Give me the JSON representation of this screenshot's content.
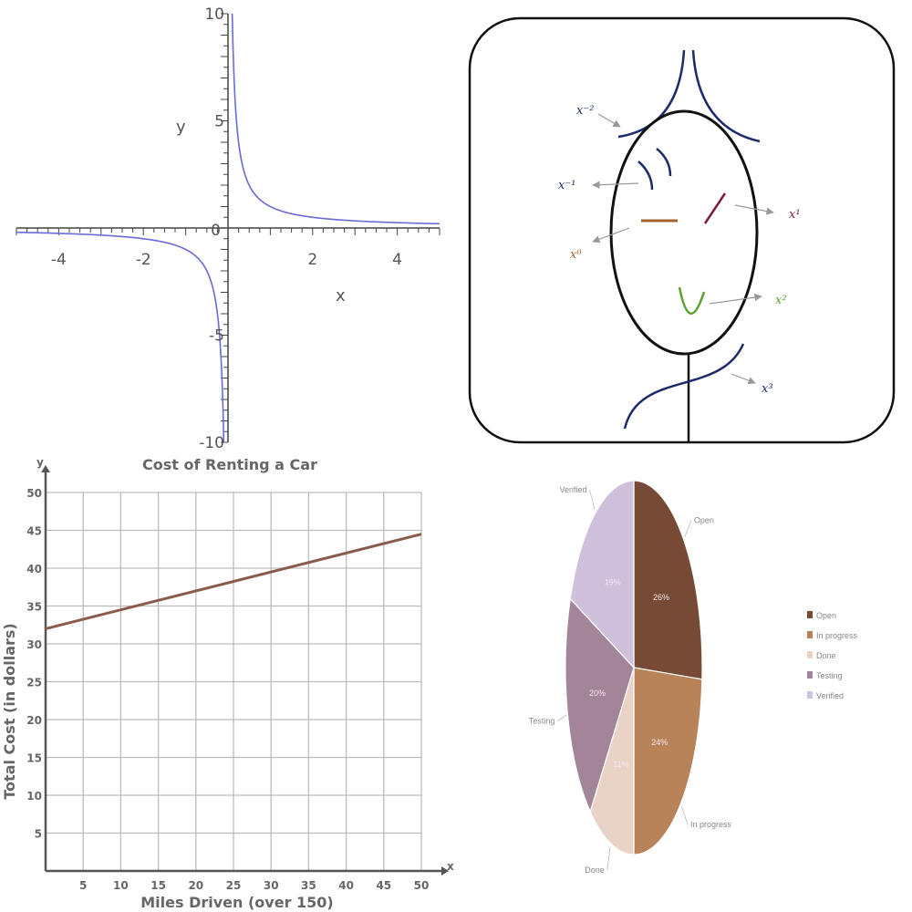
{
  "chart_data": [
    {
      "type": "line",
      "function": "1/x",
      "title": "",
      "xlabel": "x",
      "ylabel": "y",
      "xlim": [
        -5,
        5
      ],
      "ylim": [
        -10,
        10
      ],
      "xticks": [
        -4,
        -2,
        0,
        2,
        4
      ],
      "yticks": [
        -10,
        -5,
        0,
        5,
        10
      ],
      "x_tick_labels": [
        "-4",
        "-2",
        "0",
        "2",
        "4"
      ],
      "y_tick_labels": [
        "-10",
        "-5",
        "0",
        "5",
        "10"
      ],
      "line_color": "#6a6ad8"
    },
    {
      "type": "diagram",
      "labels": [
        "x⁻²",
        "x⁻¹",
        "x⁰",
        "x¹",
        "x²",
        "x³"
      ],
      "colors": {
        "neg2": "#1f2a6b",
        "neg1": "#1f2a6b",
        "zero": "#a0622d",
        "one": "#7a1f3d",
        "two": "#5aa02c",
        "three": "#1f2a6b"
      }
    },
    {
      "type": "line",
      "title": "Cost of Renting a Car",
      "xlabel": "Miles Driven (over 150)",
      "ylabel": "Total Cost (in dollars)",
      "x_axis_letter": "x",
      "y_axis_letter": "y",
      "xlim": [
        0,
        50
      ],
      "ylim": [
        0,
        50
      ],
      "xticks": [
        5,
        10,
        15,
        20,
        25,
        30,
        35,
        40,
        45,
        50
      ],
      "yticks": [
        5,
        10,
        15,
        20,
        25,
        30,
        35,
        40,
        45,
        50
      ],
      "x_tick_labels": [
        "5",
        "10",
        "15",
        "20",
        "25",
        "30",
        "35",
        "40",
        "45",
        "50"
      ],
      "y_tick_labels": [
        "5",
        "10",
        "15",
        "20",
        "25",
        "30",
        "35",
        "40",
        "45",
        "50"
      ],
      "x": [
        0,
        50
      ],
      "y": [
        32,
        44.5
      ],
      "grid": true,
      "line_color": "#8b5a4a"
    },
    {
      "type": "pie",
      "categories": [
        "Open",
        "In progress",
        "Done",
        "Testing",
        "Verified"
      ],
      "values": [
        26,
        24,
        11,
        20,
        19
      ],
      "percent_labels": [
        "26%",
        "24%",
        "11%",
        "20%",
        "19%"
      ],
      "colors": [
        "#764a35",
        "#b9835a",
        "#e8d3c6",
        "#a38599",
        "#cfc0dc"
      ],
      "legend": "right"
    }
  ]
}
